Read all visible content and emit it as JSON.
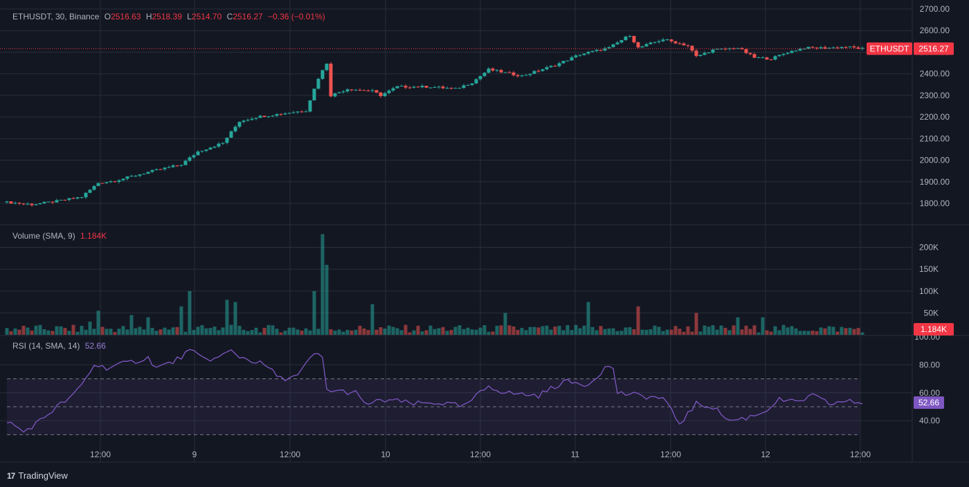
{
  "main_legend": {
    "symbol": "ETHUSDT, 30, Binance",
    "o_label": "O",
    "o_value": "2516.63",
    "h_label": "H",
    "h_value": "2518.39",
    "l_label": "L",
    "l_value": "2514.70",
    "c_label": "C",
    "c_value": "2516.27",
    "change": "−0.36 (−0.01%)"
  },
  "volume_legend": {
    "label": "Volume (SMA, 9)",
    "value": "1.184K"
  },
  "rsi_legend": {
    "label": "RSI (14, SMA, 14)",
    "value": "52.66"
  },
  "price_tag": {
    "symbol": "ETHUSDT",
    "value": "2516.27"
  },
  "volume_tag": "1.184K",
  "rsi_tag": "52.66",
  "brand": "TradingView",
  "colors": {
    "up": "#26a69a",
    "down": "#ef5350",
    "rsi": "#7e57c2",
    "background": "#131722",
    "grid": "#2a2e39"
  },
  "chart_data": [
    {
      "type": "candlestick",
      "title": "ETHUSDT, 30, Binance",
      "y_ticks": [
        "2700.00",
        "2600.00",
        "2500.00",
        "2400.00",
        "2300.00",
        "2200.00",
        "2100.00",
        "2000.00",
        "1900.00",
        "1800.00"
      ],
      "ylim": [
        1690,
        2720
      ],
      "x_ticks": [
        "12:00",
        "9",
        "12:00",
        "10",
        "12:00",
        "11",
        "12:00",
        "12",
        "12:00"
      ],
      "last_price": 2516.27,
      "close_path": [
        [
          0,
          1805
        ],
        [
          6,
          1795
        ],
        [
          12,
          1810
        ],
        [
          18,
          1830
        ],
        [
          22,
          1895
        ],
        [
          26,
          1905
        ],
        [
          34,
          1945
        ],
        [
          42,
          1980
        ],
        [
          46,
          2040
        ],
        [
          52,
          2080
        ],
        [
          56,
          2180
        ],
        [
          60,
          2200
        ],
        [
          66,
          2215
        ],
        [
          72,
          2230
        ],
        [
          75,
          2380
        ],
        [
          77,
          2450
        ],
        [
          78,
          2300
        ],
        [
          82,
          2330
        ],
        [
          88,
          2320
        ],
        [
          90,
          2300
        ],
        [
          94,
          2340
        ],
        [
          102,
          2340
        ],
        [
          108,
          2330
        ],
        [
          112,
          2360
        ],
        [
          116,
          2420
        ],
        [
          124,
          2390
        ],
        [
          132,
          2440
        ],
        [
          138,
          2490
        ],
        [
          145,
          2520
        ],
        [
          150,
          2580
        ],
        [
          152,
          2520
        ],
        [
          158,
          2560
        ],
        [
          164,
          2530
        ],
        [
          166,
          2480
        ],
        [
          170,
          2510
        ],
        [
          176,
          2520
        ],
        [
          180,
          2475
        ],
        [
          184,
          2470
        ],
        [
          188,
          2500
        ],
        [
          192,
          2520
        ],
        [
          198,
          2520
        ],
        [
          202,
          2525
        ],
        [
          206,
          2516
        ]
      ]
    },
    {
      "type": "bar",
      "title": "Volume (SMA, 9)",
      "y_ticks": [
        "200K",
        "150K",
        "100K",
        "50K"
      ],
      "ylim": [
        0,
        240000
      ],
      "spikes": [
        [
          20,
          30000
        ],
        [
          22,
          55000
        ],
        [
          30,
          45000
        ],
        [
          34,
          40000
        ],
        [
          42,
          65000
        ],
        [
          44,
          100000
        ],
        [
          53,
          80000
        ],
        [
          55,
          75000
        ],
        [
          74,
          100000
        ],
        [
          76,
          230000
        ],
        [
          77,
          160000
        ],
        [
          88,
          70000
        ],
        [
          120,
          50000
        ],
        [
          140,
          75000
        ],
        [
          152,
          65000
        ],
        [
          166,
          50000
        ],
        [
          176,
          40000
        ],
        [
          182,
          40000
        ]
      ]
    },
    {
      "type": "line",
      "title": "RSI (14, SMA, 14)",
      "y_ticks": [
        "100.00",
        "80.00",
        "60.00",
        "40.00"
      ],
      "ylim": [
        20,
        100
      ],
      "bands": [
        70,
        50,
        30
      ],
      "path": [
        [
          0,
          40
        ],
        [
          4,
          32
        ],
        [
          8,
          40
        ],
        [
          12,
          50
        ],
        [
          16,
          58
        ],
        [
          19,
          70
        ],
        [
          21,
          80
        ],
        [
          24,
          78
        ],
        [
          30,
          82
        ],
        [
          34,
          85
        ],
        [
          36,
          78
        ],
        [
          40,
          82
        ],
        [
          44,
          90
        ],
        [
          47,
          85
        ],
        [
          50,
          84
        ],
        [
          54,
          90
        ],
        [
          56,
          86
        ],
        [
          62,
          80
        ],
        [
          66,
          70
        ],
        [
          70,
          72
        ],
        [
          74,
          88
        ],
        [
          76,
          85
        ],
        [
          77,
          62
        ],
        [
          84,
          60
        ],
        [
          86,
          52
        ],
        [
          92,
          55
        ],
        [
          98,
          52
        ],
        [
          104,
          53
        ],
        [
          110,
          50
        ],
        [
          116,
          65
        ],
        [
          120,
          60
        ],
        [
          128,
          58
        ],
        [
          134,
          68
        ],
        [
          140,
          66
        ],
        [
          144,
          78
        ],
        [
          146,
          78
        ],
        [
          147,
          60
        ],
        [
          152,
          58
        ],
        [
          158,
          56
        ],
        [
          162,
          38
        ],
        [
          166,
          52
        ],
        [
          170,
          50
        ],
        [
          174,
          40
        ],
        [
          178,
          42
        ],
        [
          182,
          46
        ],
        [
          186,
          55
        ],
        [
          190,
          53
        ],
        [
          194,
          58
        ],
        [
          198,
          52
        ],
        [
          202,
          54
        ],
        [
          206,
          52.66
        ]
      ]
    }
  ]
}
